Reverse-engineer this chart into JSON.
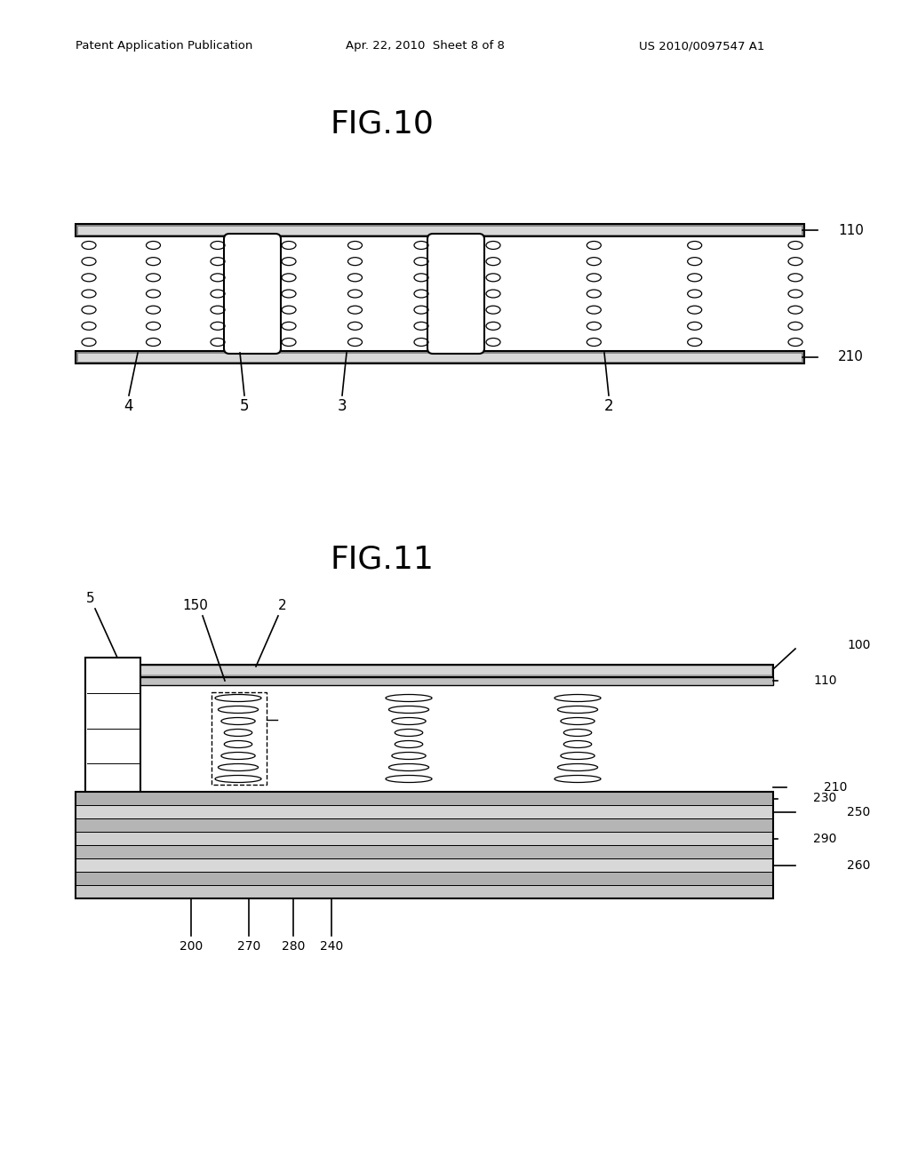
{
  "bg_color": "#ffffff",
  "header_left": "Patent Application Publication",
  "header_center": "Apr. 22, 2010  Sheet 8 of 8",
  "header_right": "US 2010/0097547 A1",
  "fig10_title": "FIG.10",
  "fig11_title": "FIG.11",
  "line_color": "#000000",
  "plate_gray": "#b0b0b0",
  "plate_light": "#d0d0d0"
}
